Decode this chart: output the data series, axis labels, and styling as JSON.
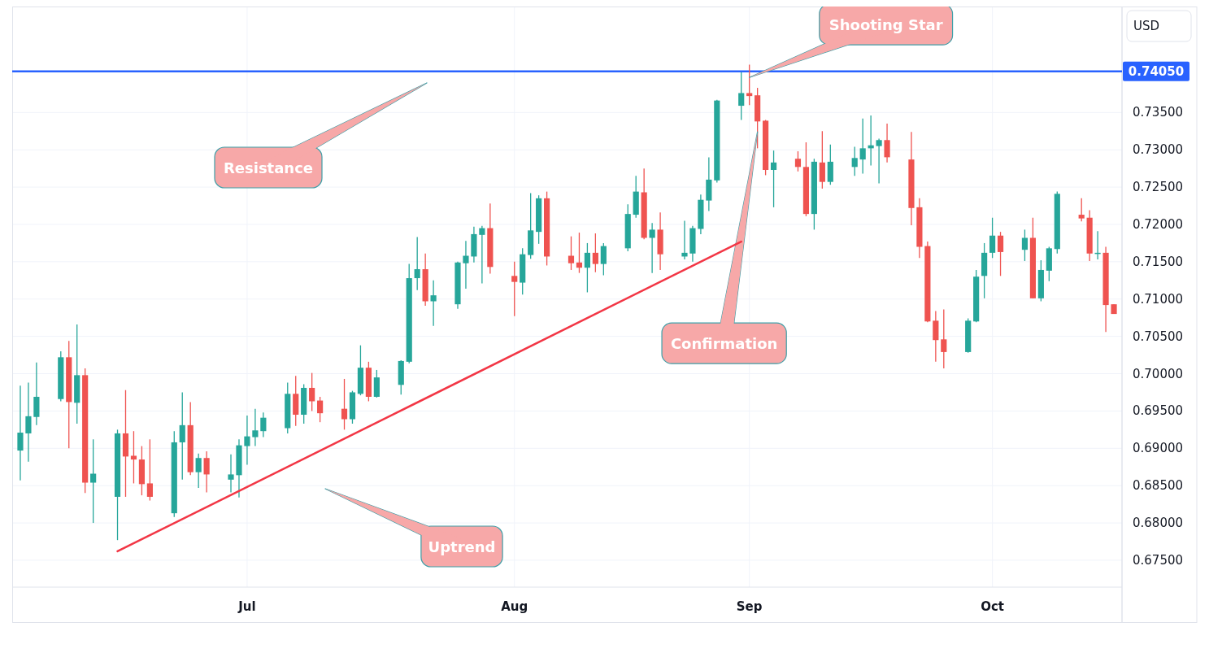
{
  "chart_data": {
    "type": "candlestick",
    "ylabel": "USD",
    "x": [
      "--06-03",
      "--06-04",
      "--06-05",
      "--06-08",
      "--06-09",
      "--06-10",
      "--06-11",
      "--06-12",
      "--06-15",
      "--06-16",
      "--06-17",
      "--06-18",
      "--06-19",
      "--06-22",
      "--06-23",
      "--06-24",
      "--06-25",
      "--06-26",
      "--06-29",
      "--06-30",
      "--07-01",
      "--07-02",
      "--07-03",
      "--07-06",
      "--07-07",
      "--07-08",
      "--07-09",
      "--07-10",
      "--07-13",
      "--07-14",
      "--07-15",
      "--07-16",
      "--07-17",
      "--07-20",
      "--07-21",
      "--07-22",
      "--07-23",
      "--07-24",
      "--07-27",
      "--07-28",
      "--07-29",
      "--07-30",
      "--07-31",
      "--08-03",
      "--08-04",
      "--08-05",
      "--08-06",
      "--08-07",
      "--08-10",
      "--08-11",
      "--08-12",
      "--08-13",
      "--08-14",
      "--08-17",
      "--08-18",
      "--08-19",
      "--08-20",
      "--08-21",
      "--08-24",
      "--08-25",
      "--08-26",
      "--08-27",
      "--08-28",
      "--08-31",
      "--09-01",
      "--09-02",
      "--09-03",
      "--09-04",
      "--09-07",
      "--09-08",
      "--09-09",
      "--09-10",
      "--09-11",
      "--09-14",
      "--09-15",
      "--09-16",
      "--09-17",
      "--09-18",
      "--09-21",
      "--09-22",
      "--09-23",
      "--09-24",
      "--09-25",
      "--09-28",
      "--09-29",
      "--09-30",
      "--10-01",
      "--10-02",
      "--10-05",
      "--10-06",
      "--10-07",
      "--10-08",
      "--10-09",
      "--10-12",
      "--10-13",
      "--10-14",
      "--10-15",
      "--10-16"
    ],
    "ohlc": [
      [
        0.6897,
        0.6984,
        0.6857,
        0.6921
      ],
      [
        0.692,
        0.6988,
        0.6882,
        0.6943
      ],
      [
        0.6942,
        0.7015,
        0.6931,
        0.6969
      ],
      [
        0.6966,
        0.703,
        0.6963,
        0.7022
      ],
      [
        0.7022,
        0.7044,
        0.69,
        0.6962
      ],
      [
        0.6961,
        0.7066,
        0.6933,
        0.6998
      ],
      [
        0.6998,
        0.7007,
        0.684,
        0.6854
      ],
      [
        0.6854,
        0.6912,
        0.68,
        0.6866
      ],
      [
        0.6835,
        0.6925,
        0.6777,
        0.692
      ],
      [
        0.692,
        0.6978,
        0.6835,
        0.6889
      ],
      [
        0.689,
        0.6923,
        0.6853,
        0.6885
      ],
      [
        0.6885,
        0.6903,
        0.6837,
        0.6852
      ],
      [
        0.6853,
        0.6912,
        0.683,
        0.6835
      ],
      [
        0.6813,
        0.6923,
        0.6808,
        0.6908
      ],
      [
        0.6908,
        0.6975,
        0.6858,
        0.6931
      ],
      [
        0.6931,
        0.6962,
        0.6864,
        0.6868
      ],
      [
        0.6868,
        0.6893,
        0.6847,
        0.6887
      ],
      [
        0.6887,
        0.6896,
        0.6841,
        0.6865
      ],
      [
        0.6858,
        0.6892,
        0.6841,
        0.6865
      ],
      [
        0.6864,
        0.6912,
        0.6834,
        0.6904
      ],
      [
        0.6903,
        0.6944,
        0.6878,
        0.6916
      ],
      [
        0.6915,
        0.6953,
        0.6903,
        0.6924
      ],
      [
        0.6923,
        0.6948,
        0.6915,
        0.6941
      ],
      [
        0.6927,
        0.6988,
        0.692,
        0.6973
      ],
      [
        0.6973,
        0.6997,
        0.693,
        0.6945
      ],
      [
        0.6945,
        0.6986,
        0.6933,
        0.6981
      ],
      [
        0.6981,
        0.7001,
        0.695,
        0.6963
      ],
      [
        0.6964,
        0.6969,
        0.6935,
        0.6947
      ],
      [
        0.6953,
        0.6993,
        0.6925,
        0.6939
      ],
      [
        0.6939,
        0.6977,
        0.6933,
        0.6975
      ],
      [
        0.6973,
        0.7038,
        0.6971,
        0.7008
      ],
      [
        0.7008,
        0.7016,
        0.6963,
        0.6969
      ],
      [
        0.6969,
        0.7005,
        0.6968,
        0.6995
      ],
      [
        0.6985,
        0.7018,
        0.6972,
        0.7017
      ],
      [
        0.7016,
        0.7147,
        0.7014,
        0.7128
      ],
      [
        0.7128,
        0.7183,
        0.7112,
        0.714
      ],
      [
        0.714,
        0.7161,
        0.7091,
        0.7097
      ],
      [
        0.7097,
        0.7125,
        0.7064,
        0.7105
      ],
      [
        0.7093,
        0.715,
        0.7087,
        0.7149
      ],
      [
        0.7148,
        0.7178,
        0.7114,
        0.7158
      ],
      [
        0.7157,
        0.7197,
        0.7149,
        0.7187
      ],
      [
        0.7186,
        0.7198,
        0.7121,
        0.7195
      ],
      [
        0.7195,
        0.7228,
        0.7134,
        0.7143
      ],
      [
        0.7131,
        0.715,
        0.7077,
        0.7123
      ],
      [
        0.7122,
        0.7168,
        0.7106,
        0.716
      ],
      [
        0.7159,
        0.7242,
        0.7154,
        0.7192
      ],
      [
        0.719,
        0.7239,
        0.7174,
        0.7235
      ],
      [
        0.7235,
        0.7244,
        0.7145,
        0.7157
      ],
      [
        0.7158,
        0.7184,
        0.7139,
        0.7148
      ],
      [
        0.7149,
        0.7189,
        0.7135,
        0.7142
      ],
      [
        0.7142,
        0.7175,
        0.7109,
        0.7162
      ],
      [
        0.7162,
        0.7188,
        0.7136,
        0.7147
      ],
      [
        0.7147,
        0.7175,
        0.7132,
        0.7171
      ],
      [
        0.7168,
        0.7227,
        0.7164,
        0.7214
      ],
      [
        0.7213,
        0.7265,
        0.7209,
        0.7244
      ],
      [
        0.7243,
        0.7275,
        0.718,
        0.7182
      ],
      [
        0.7182,
        0.7202,
        0.7135,
        0.7193
      ],
      [
        0.7193,
        0.7216,
        0.7139,
        0.716
      ],
      [
        0.7157,
        0.7205,
        0.7153,
        0.7162
      ],
      [
        0.7161,
        0.7198,
        0.715,
        0.7195
      ],
      [
        0.7194,
        0.724,
        0.7187,
        0.7233
      ],
      [
        0.7232,
        0.729,
        0.7218,
        0.726
      ],
      [
        0.7259,
        0.7367,
        0.7256,
        0.7366
      ],
      [
        0.7359,
        0.7404,
        0.734,
        0.7376
      ],
      [
        0.7376,
        0.7414,
        0.736,
        0.7372
      ],
      [
        0.7373,
        0.7383,
        0.7302,
        0.7338
      ],
      [
        0.7339,
        0.734,
        0.7266,
        0.7273
      ],
      [
        0.7273,
        0.7299,
        0.7223,
        0.7283
      ],
      [
        0.7288,
        0.7298,
        0.7271,
        0.7277
      ],
      [
        0.7277,
        0.731,
        0.7211,
        0.7214
      ],
      [
        0.7214,
        0.7288,
        0.7193,
        0.7284
      ],
      [
        0.7283,
        0.7325,
        0.7248,
        0.7257
      ],
      [
        0.7257,
        0.7307,
        0.7253,
        0.7284
      ],
      [
        0.7277,
        0.7304,
        0.7265,
        0.7289
      ],
      [
        0.7287,
        0.7342,
        0.7268,
        0.7302
      ],
      [
        0.7302,
        0.7346,
        0.7279,
        0.7306
      ],
      [
        0.7305,
        0.7315,
        0.7255,
        0.7313
      ],
      [
        0.7313,
        0.7335,
        0.7283,
        0.729
      ],
      [
        0.7287,
        0.7324,
        0.7199,
        0.7222
      ],
      [
        0.7223,
        0.7235,
        0.7155,
        0.717
      ],
      [
        0.7171,
        0.7177,
        0.7069,
        0.707
      ],
      [
        0.7071,
        0.7084,
        0.7016,
        0.7045
      ],
      [
        0.7046,
        0.7086,
        0.7007,
        0.7029
      ],
      [
        0.7029,
        0.7074,
        0.7028,
        0.7071
      ],
      [
        0.707,
        0.7139,
        0.7069,
        0.713
      ],
      [
        0.7131,
        0.7175,
        0.7101,
        0.7162
      ],
      [
        0.7162,
        0.7209,
        0.7155,
        0.7185
      ],
      [
        0.7185,
        0.719,
        0.7131,
        0.7163
      ],
      [
        0.7166,
        0.7193,
        0.7151,
        0.7182
      ],
      [
        0.7182,
        0.7209,
        0.7101,
        0.7101
      ],
      [
        0.7101,
        0.7152,
        0.7097,
        0.7139
      ],
      [
        0.7138,
        0.717,
        0.7124,
        0.7168
      ],
      [
        0.7167,
        0.7244,
        0.7161,
        0.7241
      ],
      [
        0.7213,
        0.7235,
        0.7204,
        0.7208
      ],
      [
        0.7209,
        0.7219,
        0.7151,
        0.7161
      ],
      [
        0.7162,
        0.7191,
        0.7153,
        0.7162
      ],
      [
        0.7162,
        0.717,
        0.7056,
        0.7092
      ],
      [
        0.7093,
        0.7093,
        0.708,
        0.708
      ]
    ],
    "colors": [
      "#26a69a",
      "#26a69a",
      "#26a69a",
      "#26a69a",
      "#ef5350",
      "#26a69a",
      "#ef5350",
      "#26a69a",
      "#26a69a",
      "#ef5350",
      "#ef5350",
      "#ef5350",
      "#ef5350",
      "#26a69a",
      "#26a69a",
      "#ef5350",
      "#26a69a",
      "#ef5350",
      "#26a69a",
      "#26a69a",
      "#26a69a",
      "#26a69a",
      "#26a69a",
      "#26a69a",
      "#ef5350",
      "#26a69a",
      "#ef5350",
      "#ef5350",
      "#ef5350",
      "#26a69a",
      "#26a69a",
      "#ef5350",
      "#26a69a",
      "#26a69a",
      "#26a69a",
      "#26a69a",
      "#ef5350",
      "#26a69a",
      "#26a69a",
      "#26a69a",
      "#26a69a",
      "#26a69a",
      "#ef5350",
      "#ef5350",
      "#26a69a",
      "#26a69a",
      "#26a69a",
      "#ef5350",
      "#ef5350",
      "#ef5350",
      "#26a69a",
      "#ef5350",
      "#26a69a",
      "#26a69a",
      "#26a69a",
      "#ef5350",
      "#26a69a",
      "#ef5350",
      "#26a69a",
      "#26a69a",
      "#26a69a",
      "#26a69a",
      "#26a69a",
      "#26a69a",
      "#ef5350",
      "#ef5350",
      "#ef5350",
      "#26a69a",
      "#ef5350",
      "#ef5350",
      "#26a69a",
      "#ef5350",
      "#26a69a",
      "#26a69a",
      "#26a69a",
      "#26a69a",
      "#26a69a",
      "#ef5350",
      "#ef5350",
      "#ef5350",
      "#ef5350",
      "#ef5350",
      "#ef5350",
      "#26a69a",
      "#26a69a",
      "#26a69a",
      "#26a69a",
      "#ef5350",
      "#26a69a",
      "#ef5350",
      "#26a69a",
      "#26a69a",
      "#26a69a",
      "#ef5350",
      "#ef5350",
      "#26a69a",
      "#ef5350",
      "#ef5350"
    ],
    "series": [
      {
        "type": "line",
        "x": [
          "--06-15",
          "--08-31"
        ],
        "values": [
          0.6762,
          0.7177
        ],
        "color": "#f23645"
      }
    ],
    "xlim": [
      "--06-02",
      "--10-17"
    ],
    "xticks": [
      {
        "value": "--07-01",
        "label": "Jul"
      },
      {
        "value": "--08-03",
        "label": "Aug"
      },
      {
        "value": "--09-01",
        "label": "Sep"
      },
      {
        "value": "--10-01",
        "label": "Oct"
      }
    ],
    "ylim": [
      0.6714,
      0.7492
    ],
    "yticks": [
      {
        "value": 0.675,
        "label": "0.67500"
      },
      {
        "value": 0.68,
        "label": "0.68000"
      },
      {
        "value": 0.685,
        "label": "0.68500"
      },
      {
        "value": 0.69,
        "label": "0.69000"
      },
      {
        "value": 0.695,
        "label": "0.69500"
      },
      {
        "value": 0.7,
        "label": "0.70000"
      },
      {
        "value": 0.705,
        "label": "0.70500"
      },
      {
        "value": 0.71,
        "label": "0.71000"
      },
      {
        "value": 0.715,
        "label": "0.71500"
      },
      {
        "value": 0.72,
        "label": "0.72000"
      },
      {
        "value": 0.725,
        "label": "0.72500"
      },
      {
        "value": 0.73,
        "label": "0.73000"
      },
      {
        "value": 0.735,
        "label": "0.73500"
      }
    ],
    "ref_lines": [
      {
        "axis": "y",
        "value": 0.7405,
        "label": "0.74050",
        "color": "#2962ff"
      }
    ],
    "annotations": [
      {
        "text": "Shooting Star",
        "x": "--09-01",
        "y": 0.7397
      },
      "Resistance",
      {
        "text": "Confirmation",
        "x": "--09-02",
        "y": 0.7324
      },
      "Uptrend"
    ],
    "grid": true
  }
}
